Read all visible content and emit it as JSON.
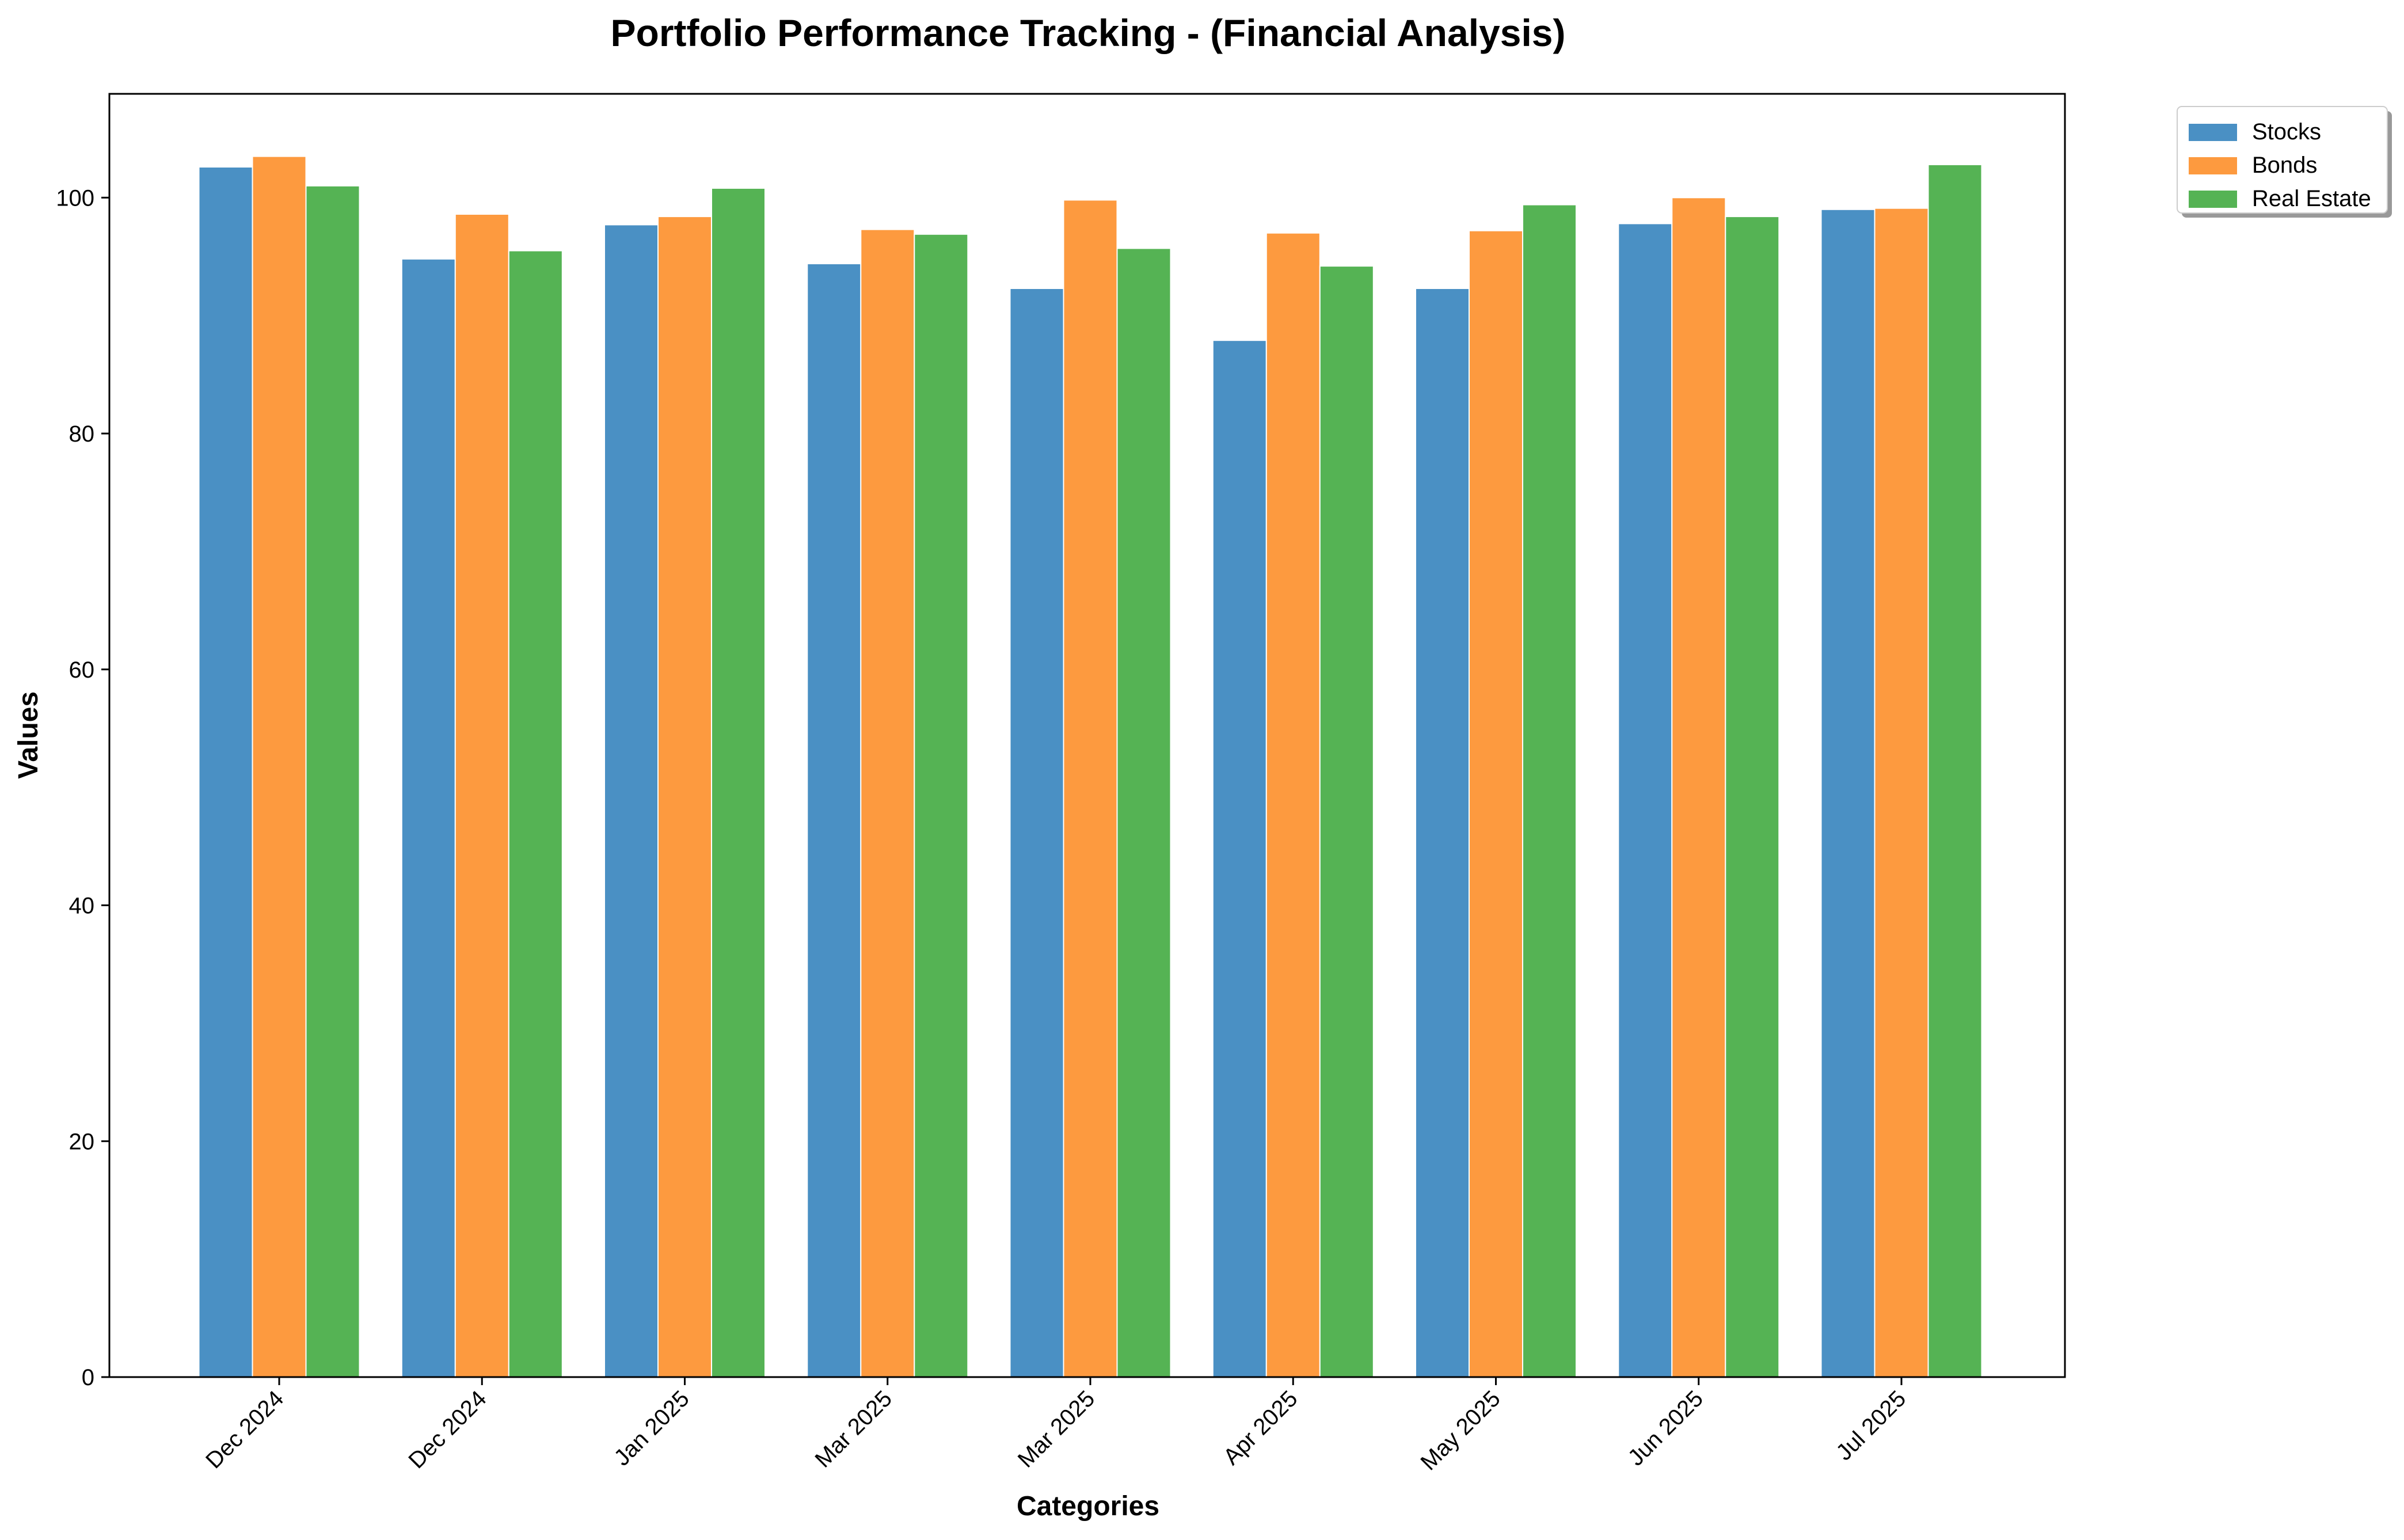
{
  "chart_data": {
    "type": "bar",
    "title": "Portfolio Performance Tracking - (Financial Analysis)",
    "xlabel": "Categories",
    "ylabel": "Values",
    "categories": [
      "Dec 2024",
      "Dec 2024",
      "Jan 2025",
      "Mar 2025",
      "Mar 2025",
      "Apr 2025",
      "May 2025",
      "Jun 2025",
      "Jul 2025"
    ],
    "series": [
      {
        "name": "Stocks",
        "color": "#4a90c4",
        "values": [
          102.6,
          94.8,
          97.7,
          94.4,
          92.3,
          87.9,
          92.3,
          97.8,
          99.0
        ]
      },
      {
        "name": "Bonds",
        "color": "#fd9a3f",
        "values": [
          103.5,
          98.6,
          98.4,
          97.3,
          99.8,
          97.0,
          97.2,
          100.0,
          99.1
        ]
      },
      {
        "name": "Real Estate",
        "color": "#55b354",
        "values": [
          101.0,
          95.5,
          100.8,
          96.9,
          95.7,
          94.2,
          99.4,
          98.4,
          102.8
        ]
      }
    ],
    "ylim": [
      0,
      108.8
    ],
    "yticks": [
      0,
      20,
      40,
      60,
      80,
      100
    ],
    "legend_position": "top-right",
    "grid": false
  }
}
